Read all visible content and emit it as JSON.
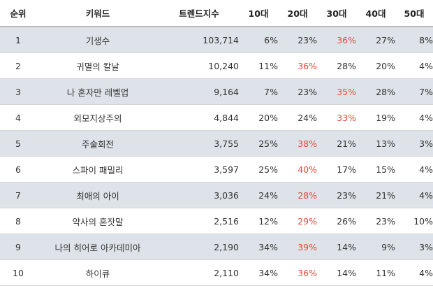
{
  "table": {
    "headers": [
      "순위",
      "키워드",
      "트렌드지수",
      "10대",
      "20대",
      "30대",
      "40대",
      "50대"
    ],
    "highlight_color": "#e64a3b",
    "rows": [
      {
        "rank": "1",
        "keyword": "기생수",
        "index": "103,714",
        "a10": "6%",
        "a20": "23%",
        "a30": "36%",
        "a40": "27%",
        "a50": "8%",
        "hl": "a30"
      },
      {
        "rank": "2",
        "keyword": "귀멸의 칼날",
        "index": "10,240",
        "a10": "11%",
        "a20": "36%",
        "a30": "28%",
        "a40": "20%",
        "a50": "4%",
        "hl": "a20"
      },
      {
        "rank": "3",
        "keyword": "나 혼자만 레벨업",
        "index": "9,164",
        "a10": "7%",
        "a20": "23%",
        "a30": "35%",
        "a40": "28%",
        "a50": "7%",
        "hl": "a30"
      },
      {
        "rank": "4",
        "keyword": "외모지상주의",
        "index": "4,844",
        "a10": "20%",
        "a20": "24%",
        "a30": "33%",
        "a40": "19%",
        "a50": "4%",
        "hl": "a30"
      },
      {
        "rank": "5",
        "keyword": "주술회전",
        "index": "3,755",
        "a10": "25%",
        "a20": "38%",
        "a30": "21%",
        "a40": "13%",
        "a50": "3%",
        "hl": "a20"
      },
      {
        "rank": "6",
        "keyword": "스파이 패밀리",
        "index": "3,597",
        "a10": "25%",
        "a20": "40%",
        "a30": "17%",
        "a40": "15%",
        "a50": "4%",
        "hl": "a20"
      },
      {
        "rank": "7",
        "keyword": "최애의 아이",
        "index": "3,036",
        "a10": "24%",
        "a20": "28%",
        "a30": "23%",
        "a40": "21%",
        "a50": "4%",
        "hl": "a20"
      },
      {
        "rank": "8",
        "keyword": "약사의 혼잣말",
        "index": "2,516",
        "a10": "12%",
        "a20": "29%",
        "a30": "26%",
        "a40": "23%",
        "a50": "10%",
        "hl": "a20"
      },
      {
        "rank": "9",
        "keyword": "나의 히어로 아카데미아",
        "index": "2,190",
        "a10": "34%",
        "a20": "39%",
        "a30": "14%",
        "a40": "9%",
        "a50": "3%",
        "hl": "a20"
      },
      {
        "rank": "10",
        "keyword": "하이큐",
        "index": "2,110",
        "a10": "34%",
        "a20": "36%",
        "a30": "14%",
        "a40": "11%",
        "a50": "4%",
        "hl": "a20"
      }
    ]
  }
}
